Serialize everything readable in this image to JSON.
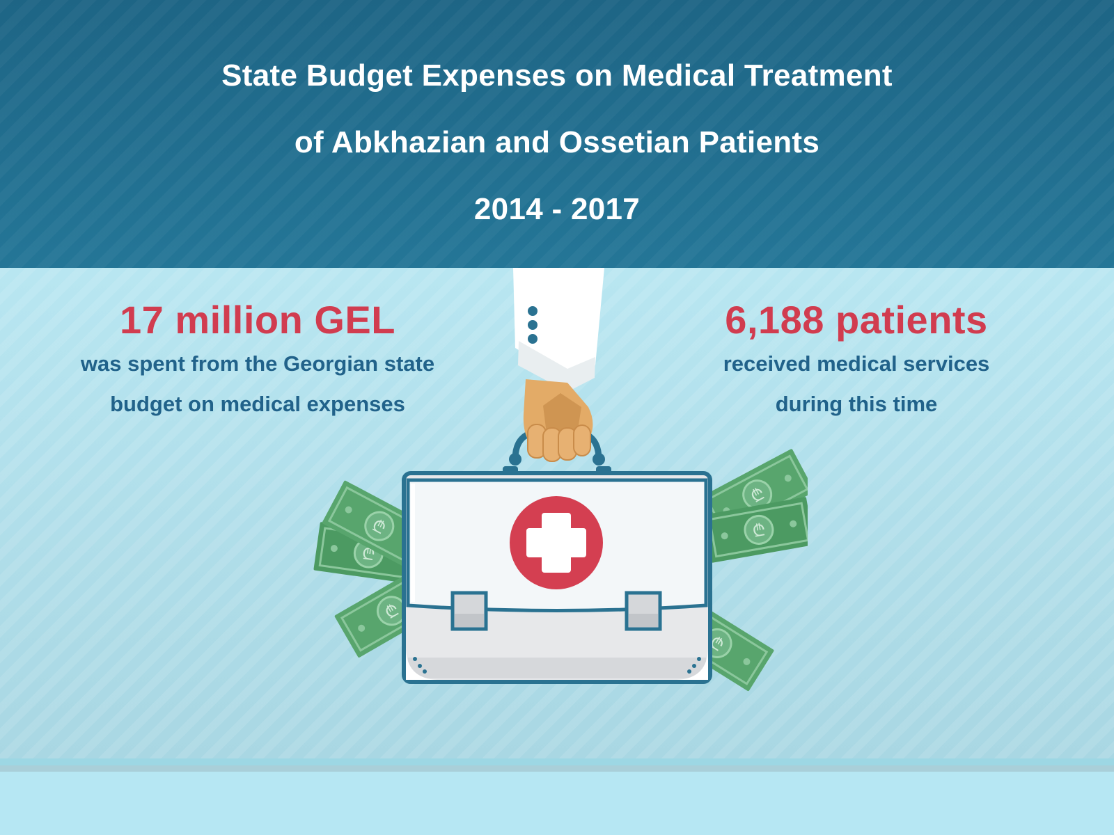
{
  "header": {
    "title_line1": "State Budget Expenses on Medical Treatment",
    "title_line2": "of Abkhazian and Ossetian Patients",
    "years": "2014 - 2017"
  },
  "left_stat": {
    "value": "17 million GEL",
    "desc_line1": "was spent from the Georgian state",
    "desc_line2": "budget on medical expenses"
  },
  "right_stat": {
    "value": "6,188 patients",
    "desc_line1": "received medical services",
    "desc_line2": "during this time"
  },
  "illustration": {
    "description_icons": [
      "hand-icon",
      "medical-briefcase-icon",
      "red-cross-icon",
      "banknote-icon"
    ],
    "currency_symbol": "₾"
  },
  "colors": {
    "header_bg": "#1e6585",
    "body_bg": "#b3e3ee",
    "accent_red": "#d13c4f",
    "text_blue": "#21628a",
    "money_green": "#4c9a62"
  }
}
